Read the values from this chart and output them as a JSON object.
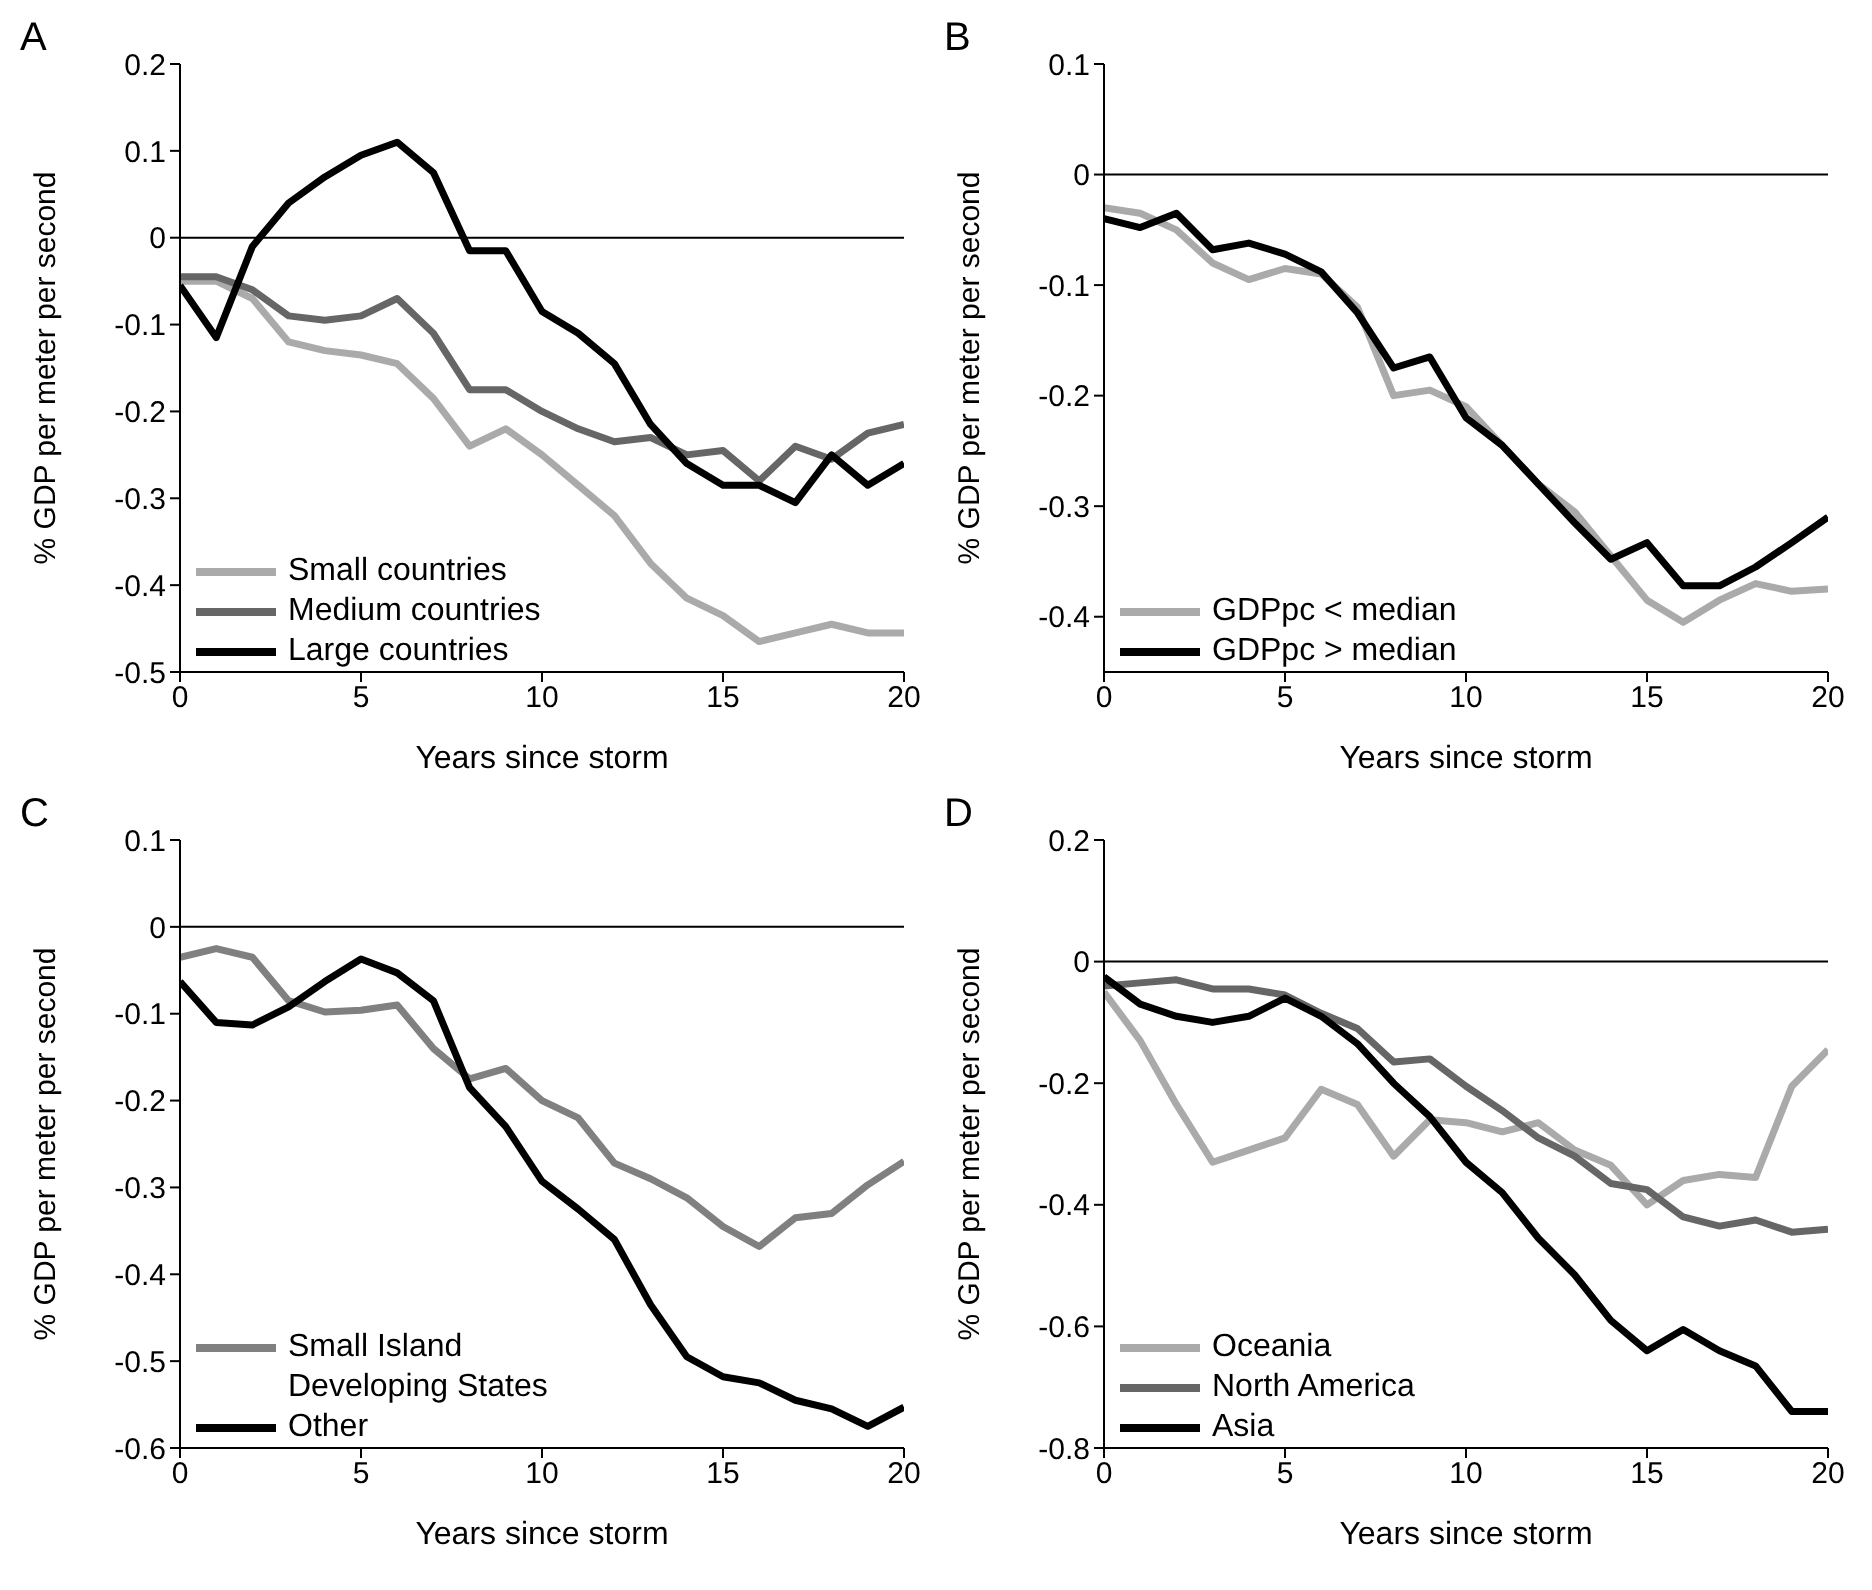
{
  "chart_data": [
    {
      "type": "line",
      "title": "A",
      "xlabel": "Years since storm",
      "ylabel": "% GDP per meter per second",
      "x": [
        0,
        1,
        2,
        3,
        4,
        5,
        6,
        7,
        8,
        9,
        10,
        11,
        12,
        13,
        14,
        15,
        16,
        17,
        18,
        19,
        20
      ],
      "xlim": [
        0,
        20
      ],
      "xticks": [
        0,
        5,
        10,
        15,
        20
      ],
      "ylim": [
        -0.5,
        0.2
      ],
      "yticks": [
        -0.5,
        -0.4,
        -0.3,
        -0.2,
        -0.1,
        0,
        0.1,
        0.2
      ],
      "legend": "bottom left",
      "ref_lines": [
        {
          "axis": "y",
          "value": 0,
          "color": "#000000"
        }
      ],
      "series": [
        {
          "name": "Small countries",
          "color": "#aaaaaa",
          "values": [
            -0.05,
            -0.05,
            -0.07,
            -0.12,
            -0.13,
            -0.135,
            -0.145,
            -0.185,
            -0.24,
            -0.22,
            -0.25,
            -0.285,
            -0.32,
            -0.375,
            -0.415,
            -0.435,
            -0.465,
            -0.455,
            -0.445,
            -0.455,
            -0.455
          ]
        },
        {
          "name": "Medium countries",
          "color": "#666666",
          "values": [
            -0.045,
            -0.045,
            -0.06,
            -0.09,
            -0.095,
            -0.09,
            -0.07,
            -0.11,
            -0.175,
            -0.175,
            -0.2,
            -0.22,
            -0.235,
            -0.23,
            -0.25,
            -0.245,
            -0.28,
            -0.24,
            -0.255,
            -0.225,
            -0.215
          ]
        },
        {
          "name": "Large countries",
          "color": "#000000",
          "values": [
            -0.055,
            -0.115,
            -0.01,
            0.04,
            0.07,
            0.095,
            0.11,
            0.075,
            -0.015,
            -0.015,
            -0.085,
            -0.11,
            -0.145,
            -0.215,
            -0.26,
            -0.285,
            -0.285,
            -0.305,
            -0.25,
            -0.285,
            -0.26
          ]
        }
      ]
    },
    {
      "type": "line",
      "title": "B",
      "xlabel": "Years since storm",
      "ylabel": "% GDP per meter per second",
      "x": [
        0,
        1,
        2,
        3,
        4,
        5,
        6,
        7,
        8,
        9,
        10,
        11,
        12,
        13,
        14,
        15,
        16,
        17,
        18,
        19,
        20
      ],
      "xlim": [
        0,
        20
      ],
      "xticks": [
        0,
        5,
        10,
        15,
        20
      ],
      "ylim": [
        -0.45,
        0.1
      ],
      "yticks": [
        -0.4,
        -0.3,
        -0.2,
        -0.1,
        0,
        0.1
      ],
      "legend": "bottom left",
      "ref_lines": [
        {
          "axis": "y",
          "value": 0,
          "color": "#000000"
        }
      ],
      "series": [
        {
          "name": "GDPpc < median",
          "color": "#aaaaaa",
          "values": [
            -0.03,
            -0.035,
            -0.05,
            -0.08,
            -0.095,
            -0.085,
            -0.09,
            -0.12,
            -0.2,
            -0.195,
            -0.21,
            -0.245,
            -0.28,
            -0.305,
            -0.345,
            -0.385,
            -0.405,
            -0.385,
            -0.37,
            -0.377,
            -0.375
          ]
        },
        {
          "name": "GDPpc > median",
          "color": "#000000",
          "values": [
            -0.04,
            -0.048,
            -0.035,
            -0.068,
            -0.062,
            -0.072,
            -0.088,
            -0.125,
            -0.175,
            -0.165,
            -0.22,
            -0.245,
            -0.28,
            -0.315,
            -0.348,
            -0.333,
            -0.372,
            -0.372,
            -0.355,
            -0.333,
            -0.31
          ]
        }
      ]
    },
    {
      "type": "line",
      "title": "C",
      "xlabel": "Years since storm",
      "ylabel": "% GDP per meter per second",
      "x": [
        0,
        1,
        2,
        3,
        4,
        5,
        6,
        7,
        8,
        9,
        10,
        11,
        12,
        13,
        14,
        15,
        16,
        17,
        18,
        19,
        20
      ],
      "xlim": [
        0,
        20
      ],
      "xticks": [
        0,
        5,
        10,
        15,
        20
      ],
      "ylim": [
        -0.6,
        0.1
      ],
      "yticks": [
        -0.6,
        -0.5,
        -0.4,
        -0.3,
        -0.2,
        -0.1,
        0,
        0.1
      ],
      "legend": "bottom left",
      "ref_lines": [
        {
          "axis": "y",
          "value": 0,
          "color": "#000000"
        }
      ],
      "series": [
        {
          "name": "Small Island Developing States",
          "color": "#808080",
          "values": [
            -0.035,
            -0.025,
            -0.035,
            -0.085,
            -0.098,
            -0.096,
            -0.09,
            -0.14,
            -0.175,
            -0.163,
            -0.2,
            -0.22,
            -0.272,
            -0.29,
            -0.312,
            -0.345,
            -0.368,
            -0.335,
            -0.33,
            -0.297,
            -0.27
          ]
        },
        {
          "name": "Other",
          "color": "#000000",
          "values": [
            -0.063,
            -0.11,
            -0.113,
            -0.092,
            -0.063,
            -0.037,
            -0.053,
            -0.085,
            -0.185,
            -0.23,
            -0.293,
            -0.325,
            -0.36,
            -0.435,
            -0.495,
            -0.518,
            -0.525,
            -0.545,
            -0.555,
            -0.575,
            -0.553
          ]
        }
      ]
    },
    {
      "type": "line",
      "title": "D",
      "xlabel": "Years since storm",
      "ylabel": "% GDP per meter per second",
      "x": [
        0,
        1,
        2,
        3,
        4,
        5,
        6,
        7,
        8,
        9,
        10,
        11,
        12,
        13,
        14,
        15,
        16,
        17,
        18,
        19,
        20
      ],
      "xlim": [
        0,
        20
      ],
      "xticks": [
        0,
        5,
        10,
        15,
        20
      ],
      "ylim": [
        -0.8,
        0.2
      ],
      "yticks": [
        -0.8,
        -0.6,
        -0.4,
        -0.2,
        0,
        0.2
      ],
      "legend": "bottom left",
      "ref_lines": [
        {
          "axis": "y",
          "value": 0,
          "color": "#000000"
        }
      ],
      "series": [
        {
          "name": "Oceania",
          "color": "#aaaaaa",
          "values": [
            -0.05,
            -0.13,
            -0.235,
            -0.33,
            -0.31,
            -0.29,
            -0.21,
            -0.235,
            -0.32,
            -0.26,
            -0.265,
            -0.28,
            -0.265,
            -0.31,
            -0.335,
            -0.4,
            -0.36,
            -0.35,
            -0.355,
            -0.205,
            -0.145
          ]
        },
        {
          "name": "North America",
          "color": "#666666",
          "values": [
            -0.04,
            -0.035,
            -0.03,
            -0.045,
            -0.045,
            -0.055,
            -0.085,
            -0.11,
            -0.165,
            -0.16,
            -0.205,
            -0.245,
            -0.29,
            -0.32,
            -0.365,
            -0.375,
            -0.42,
            -0.435,
            -0.425,
            -0.445,
            -0.44
          ]
        },
        {
          "name": "Asia",
          "color": "#000000",
          "values": [
            -0.025,
            -0.07,
            -0.09,
            -0.1,
            -0.09,
            -0.06,
            -0.09,
            -0.135,
            -0.2,
            -0.255,
            -0.33,
            -0.38,
            -0.455,
            -0.515,
            -0.59,
            -0.64,
            -0.605,
            -0.64,
            -0.665,
            -0.74,
            -0.74
          ]
        }
      ]
    }
  ]
}
